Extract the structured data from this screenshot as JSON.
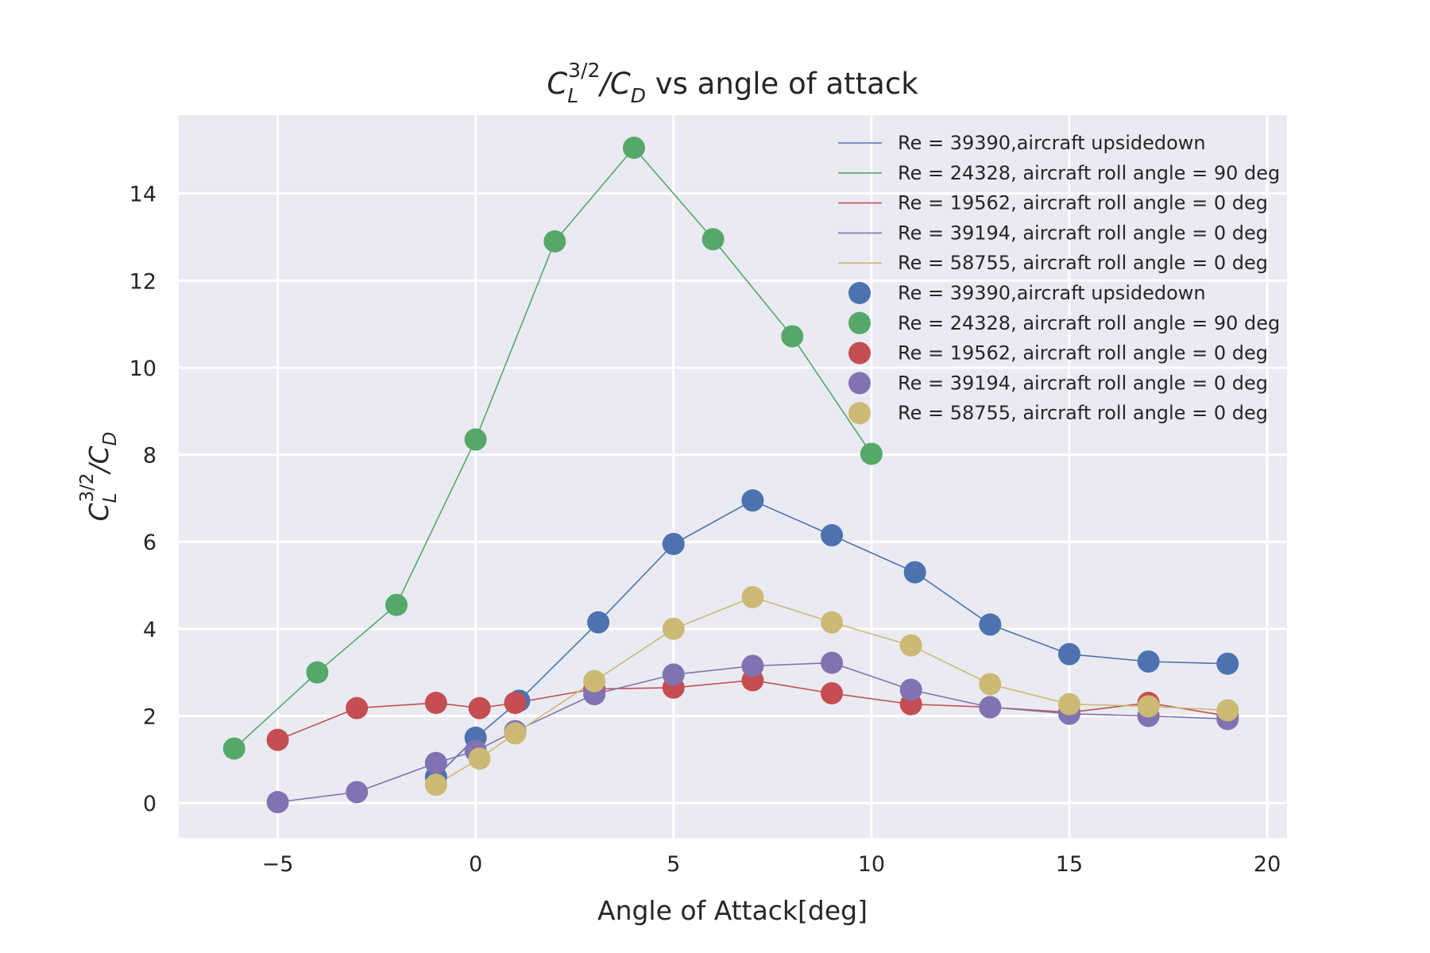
{
  "chart_data": {
    "type": "scatter",
    "title": {
      "prefix": "C",
      "prefix_sub": "L",
      "prefix_sup": "3/2",
      "middle": "/C",
      "middle_sub": "D",
      "suffix": " vs angle of attack"
    },
    "xlabel": "Angle of Attack[deg]",
    "ylabel": {
      "prefix": "C",
      "prefix_sub": "L",
      "prefix_sup": "3/2",
      "middle": "/C",
      "middle_sub": "D"
    },
    "xlim": [
      -7.5,
      20.5
    ],
    "ylim": [
      -0.8,
      15.8
    ],
    "xticks": [
      -5,
      0,
      5,
      10,
      15,
      20
    ],
    "xtick_labels": [
      "−5",
      "0",
      "5",
      "10",
      "15",
      "20"
    ],
    "yticks": [
      0,
      2,
      4,
      6,
      8,
      10,
      12,
      14
    ],
    "ytick_labels": [
      "0",
      "2",
      "4",
      "6",
      "8",
      "10",
      "12",
      "14"
    ],
    "grid": true,
    "background": "#eaeaf2",
    "legend_position": "top-right",
    "series": [
      {
        "name": "Re = 39390,aircraft upsidedown",
        "color": "#4c72b0",
        "x": [
          -1,
          0,
          1.1,
          3.1,
          5,
          7,
          9,
          11.1,
          13,
          15,
          17,
          19
        ],
        "y": [
          0.6,
          1.5,
          2.35,
          4.15,
          5.95,
          6.95,
          6.15,
          5.3,
          4.1,
          3.42,
          3.25,
          3.2
        ]
      },
      {
        "name": "Re = 24328, aircraft roll angle = 90 deg",
        "color": "#55a868",
        "x": [
          -6.1,
          -4,
          -2,
          0,
          2,
          4,
          6,
          8,
          10
        ],
        "y": [
          1.25,
          3,
          4.55,
          8.35,
          12.9,
          15.05,
          12.95,
          10.72,
          8.02
        ]
      },
      {
        "name": "Re = 19562, aircraft roll angle = 0 deg",
        "color": "#c44e52",
        "x": [
          -5,
          -3,
          -1,
          0.1,
          1,
          3,
          5,
          7,
          9,
          11,
          13,
          15,
          17,
          19
        ],
        "y": [
          1.45,
          2.18,
          2.3,
          2.18,
          2.3,
          2.62,
          2.65,
          2.82,
          2.52,
          2.27,
          2.2,
          2.08,
          2.3,
          2.0
        ]
      },
      {
        "name": "Re = 39194, aircraft roll angle = 0 deg",
        "color": "#8172b2",
        "x": [
          -5,
          -3,
          -1,
          0,
          1,
          3,
          5,
          7,
          9,
          11,
          13,
          15,
          17,
          19
        ],
        "y": [
          0.02,
          0.25,
          0.92,
          1.2,
          1.65,
          2.5,
          2.95,
          3.15,
          3.22,
          2.6,
          2.2,
          2.05,
          2.0,
          1.93
        ]
      },
      {
        "name": "Re = 58755, aircraft roll angle = 0 deg",
        "color": "#ccb974",
        "x": [
          -1,
          0.1,
          1,
          3,
          5,
          7,
          9,
          11,
          13,
          15,
          17,
          19
        ],
        "y": [
          0.42,
          1.02,
          1.6,
          2.8,
          4.0,
          4.73,
          4.15,
          3.62,
          2.73,
          2.27,
          2.22,
          2.13
        ]
      }
    ]
  }
}
